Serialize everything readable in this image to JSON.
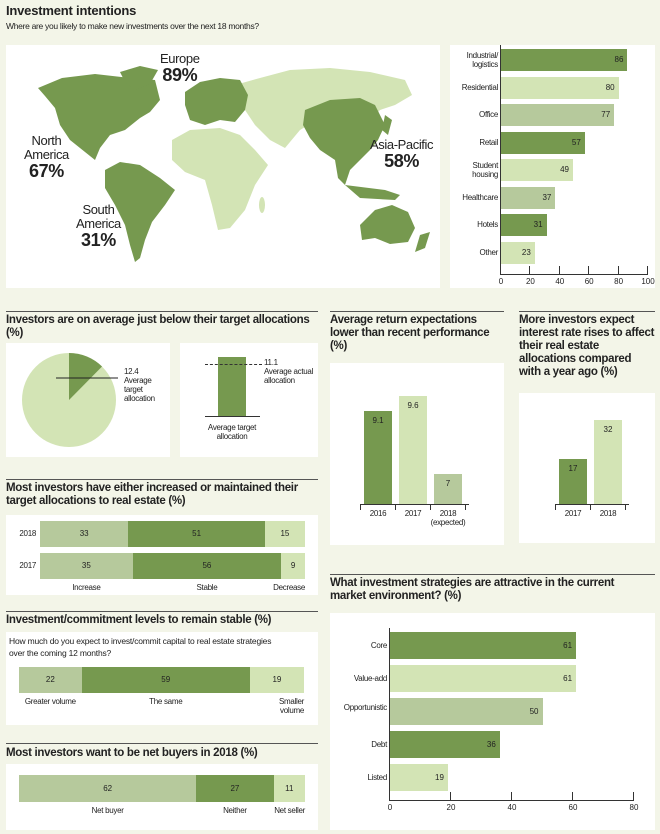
{
  "header": {
    "title": "Investment intentions",
    "subtitle": "Where are you likely to make new investments over the next 18 months?"
  },
  "colors": {
    "dark": "#76994f",
    "light": "#d3e4b5",
    "mid": "#b6c99c",
    "background": "#f3f5e8"
  },
  "map": {
    "regions": [
      {
        "name": "Europe",
        "value": "89%"
      },
      {
        "name": "North America",
        "line1": "North",
        "line2": "America",
        "value": "67%"
      },
      {
        "name": "South America",
        "line1": "South",
        "line2": "America",
        "value": "31%"
      },
      {
        "name": "Asia-Pacific",
        "value": "58%"
      }
    ]
  },
  "sections": {
    "allocations": "Investors are on average just below their target allocations (%)",
    "returns": "Average return expectations lower than recent performance (%)",
    "interest": "More investors expect interest rate rises to affect their real estate allocations compared with a year ago (%)",
    "changes": "Most investors have either increased or maintained their target allocations to real estate (%)",
    "commitment": "Investment/commitment levels to remain stable (%)",
    "commitment_question": "How much do you expect to invest/commit capital to real estate strategies over the coming 12 months?",
    "netbuyers": "Most investors want to be net buyers in 2018 (%)",
    "strategies": "What investment strategies are attractive in the current market environment? (%)"
  },
  "chart_data": [
    {
      "id": "sectors",
      "type": "bar",
      "orientation": "horizontal",
      "categories": [
        "Industrial/ logistics",
        "Residential",
        "Office",
        "Retail",
        "Student housing",
        "Healthcare",
        "Hotels",
        "Other"
      ],
      "values": [
        86,
        80,
        77,
        57,
        49,
        37,
        31,
        23
      ],
      "xlim": [
        0,
        100
      ],
      "ticks": [
        0,
        20,
        40,
        60,
        80,
        100
      ],
      "bar_colors": [
        "#76994f",
        "#d3e4b5",
        "#b6c99c",
        "#76994f",
        "#d3e4b5",
        "#b6c99c",
        "#76994f",
        "#d3e4b5"
      ]
    },
    {
      "id": "target",
      "type": "pie",
      "values": [
        12.4,
        87.6
      ],
      "label_value": "12.4",
      "label": "Average target allocation"
    },
    {
      "id": "actual",
      "type": "bar",
      "value": 11.1,
      "label_value": "11.1",
      "value_label": "Average actual allocation",
      "base_label": "Average target allocation"
    },
    {
      "id": "returns",
      "type": "bar",
      "categories": [
        "2016",
        "2017",
        "2018 (expected)"
      ],
      "values": [
        9.1,
        9.6,
        7
      ],
      "bar_colors": [
        "#76994f",
        "#d3e4b5",
        "#b6c99c"
      ]
    },
    {
      "id": "interest",
      "type": "bar",
      "categories": [
        "2017",
        "2018"
      ],
      "values": [
        17,
        32
      ],
      "bar_colors": [
        "#76994f",
        "#d3e4b5"
      ]
    },
    {
      "id": "changes",
      "type": "bar",
      "stacked": true,
      "orientation": "horizontal",
      "categories": [
        "2018",
        "2017"
      ],
      "series": [
        {
          "name": "Increase",
          "values": [
            33,
            35
          ]
        },
        {
          "name": "Stable",
          "values": [
            51,
            56
          ]
        },
        {
          "name": "Decrease",
          "values": [
            15,
            9
          ]
        }
      ]
    },
    {
      "id": "commitment",
      "type": "bar",
      "stacked": true,
      "orientation": "horizontal",
      "series": [
        {
          "name": "Greater volume",
          "values": [
            22
          ]
        },
        {
          "name": "The same",
          "values": [
            59
          ]
        },
        {
          "name": "Smaller volume",
          "values": [
            19
          ]
        }
      ]
    },
    {
      "id": "netbuyers",
      "type": "bar",
      "stacked": true,
      "orientation": "horizontal",
      "series": [
        {
          "name": "Net buyer",
          "values": [
            62
          ]
        },
        {
          "name": "Neither",
          "values": [
            27
          ]
        },
        {
          "name": "Net seller",
          "values": [
            11
          ]
        }
      ]
    },
    {
      "id": "strategies",
      "type": "bar",
      "orientation": "horizontal",
      "categories": [
        "Core",
        "Value-add",
        "Opportunistic",
        "Debt",
        "Listed"
      ],
      "values": [
        61,
        61,
        50,
        36,
        19
      ],
      "xlim": [
        0,
        80
      ],
      "ticks": [
        0,
        20,
        40,
        60,
        80
      ],
      "bar_colors": [
        "#76994f",
        "#d3e4b5",
        "#b6c99c",
        "#76994f",
        "#d3e4b5"
      ]
    }
  ]
}
